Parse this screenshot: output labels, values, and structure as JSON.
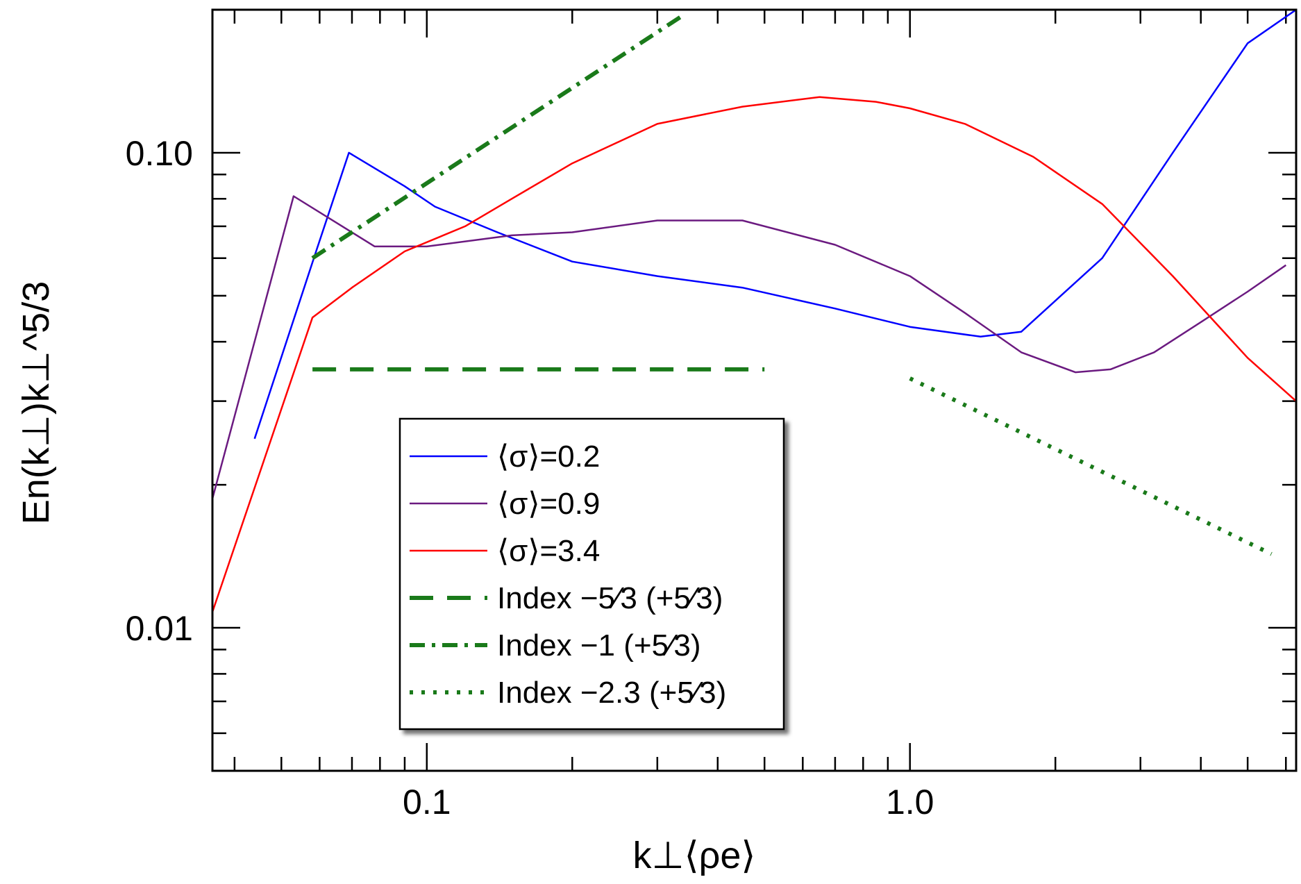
{
  "chart_data": {
    "type": "line",
    "title": "",
    "xlabel": "k⊥⟨ρe⟩",
    "ylabel": "En(k⊥)k⊥^5/3",
    "xscale": "log",
    "yscale": "log",
    "xlim": [
      0.036,
      6.3
    ],
    "ylim": [
      0.005,
      0.2
    ],
    "xticks": [
      {
        "value": 0.1,
        "label": "0.1"
      },
      {
        "value": 1.0,
        "label": "1.0"
      }
    ],
    "yticks": [
      {
        "value": 0.01,
        "label": "0.01"
      },
      {
        "value": 0.1,
        "label": "0.10"
      }
    ],
    "legend_position": "center-left",
    "series": [
      {
        "name": "⟨σ⟩=0.2",
        "color": "#0000ff",
        "dash": "solid",
        "x": [
          0.044,
          0.059,
          0.069,
          0.09,
          0.104,
          0.14,
          0.2,
          0.3,
          0.45,
          0.7,
          1.0,
          1.4,
          1.7,
          2.5,
          3.5,
          5.0,
          6.3
        ],
        "y": [
          0.025,
          0.062,
          0.1,
          0.085,
          0.077,
          0.068,
          0.059,
          0.055,
          0.052,
          0.047,
          0.043,
          0.041,
          0.042,
          0.06,
          0.1,
          0.17,
          0.2
        ]
      },
      {
        "name": "⟨σ⟩=0.9",
        "color": "#6b1a80",
        "dash": "solid",
        "x": [
          0.036,
          0.053,
          0.078,
          0.1,
          0.15,
          0.2,
          0.3,
          0.45,
          0.7,
          1.0,
          1.3,
          1.7,
          2.2,
          2.6,
          3.2,
          4.0,
          5.0,
          6.0
        ],
        "y": [
          0.0187,
          0.081,
          0.0635,
          0.0635,
          0.067,
          0.068,
          0.072,
          0.072,
          0.064,
          0.055,
          0.046,
          0.038,
          0.0345,
          0.035,
          0.038,
          0.044,
          0.051,
          0.058
        ]
      },
      {
        "name": "⟨σ⟩=3.4",
        "color": "#ff0000",
        "dash": "solid",
        "x": [
          0.036,
          0.058,
          0.07,
          0.09,
          0.12,
          0.15,
          0.2,
          0.3,
          0.45,
          0.65,
          0.85,
          1.0,
          1.3,
          1.8,
          2.5,
          3.5,
          5.0,
          6.3
        ],
        "y": [
          0.0108,
          0.045,
          0.052,
          0.062,
          0.07,
          0.08,
          0.095,
          0.115,
          0.125,
          0.131,
          0.128,
          0.124,
          0.115,
          0.098,
          0.078,
          0.055,
          0.037,
          0.03
        ]
      },
      {
        "name": "Index −5⁄3 (+5⁄3)",
        "color": "#1a7a1a",
        "dash": "dashed",
        "x": [
          0.058,
          0.5
        ],
        "y": [
          0.035,
          0.035
        ]
      },
      {
        "name": "Index −1 (+5⁄3)",
        "color": "#1a7a1a",
        "dash": "dashdot",
        "x": [
          0.058,
          0.34
        ],
        "y": [
          0.06,
          0.195
        ]
      },
      {
        "name": "Index −2.3 (+5⁄3)",
        "color": "#1a7a1a",
        "dash": "dotted",
        "x": [
          1.0,
          5.6
        ],
        "y": [
          0.0335,
          0.0143
        ]
      }
    ]
  }
}
